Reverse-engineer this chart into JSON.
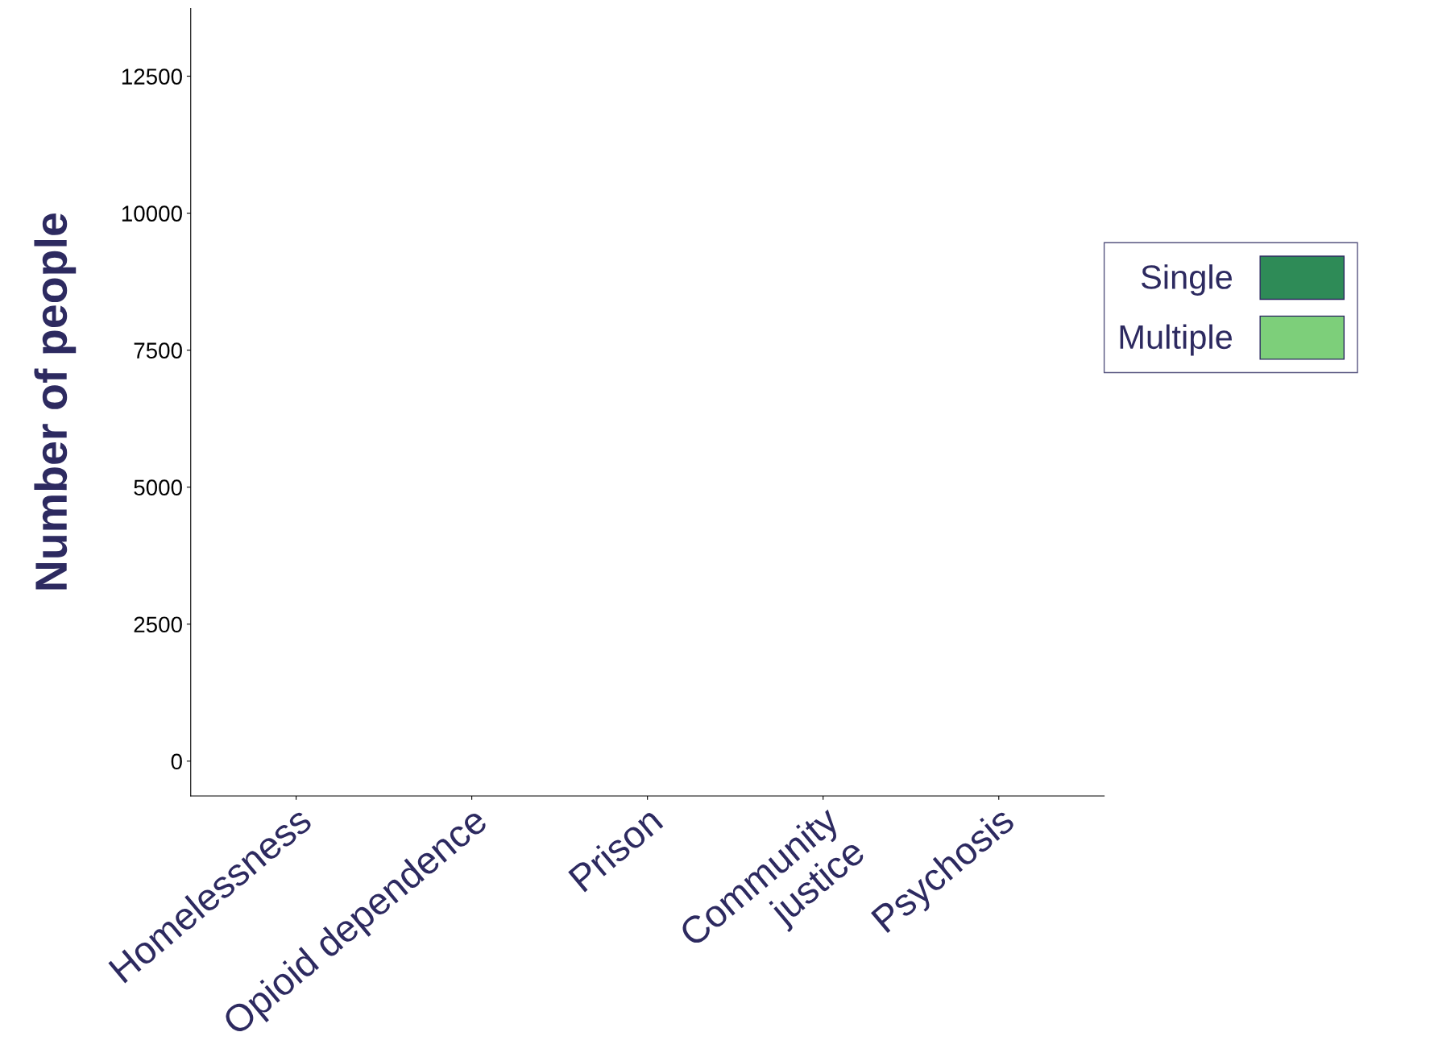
{
  "chart_data": {
    "type": "bar",
    "ylabel": "Number of people",
    "categories": [
      "Homelessness",
      "Opioid dependence",
      "Prison",
      "Community\njustice",
      "Psychosis"
    ],
    "series": [
      {
        "name": "Single",
        "color": "#2e8b57",
        "values": [
          null,
          null,
          null,
          null,
          null
        ]
      },
      {
        "name": "Multiple",
        "color": "#7dcf7a",
        "values": [
          null,
          null,
          null,
          null,
          null
        ]
      }
    ],
    "ylim": [
      -635,
      13736
    ],
    "yticks": [
      0,
      2500,
      5000,
      7500,
      10000,
      12500
    ],
    "grid": false,
    "legend": "right"
  }
}
